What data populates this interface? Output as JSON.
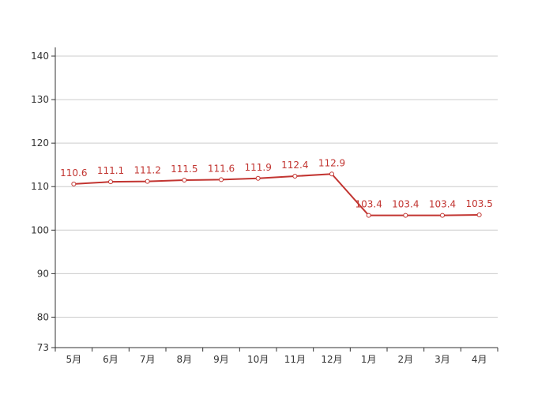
{
  "chart_data": {
    "type": "line",
    "categories": [
      "5月",
      "6月",
      "7月",
      "8月",
      "9月",
      "10月",
      "11月",
      "12月",
      "1月",
      "2月",
      "3月",
      "4月"
    ],
    "series": [
      {
        "values": [
          110.6,
          111.1,
          111.2,
          111.5,
          111.6,
          111.9,
          112.4,
          112.9,
          103.4,
          103.4,
          103.4,
          103.5
        ],
        "color": "#c23531"
      }
    ],
    "title": "",
    "xlabel": "",
    "ylabel": "",
    "ylim": [
      73,
      142
    ],
    "yticks": [
      73,
      80,
      90,
      100,
      110,
      120,
      130,
      140
    ],
    "grid": true,
    "legend": "none",
    "colors": {
      "line": "#c23531",
      "grid": "#cccccc",
      "axis": "#333333",
      "text": "#333333"
    }
  }
}
